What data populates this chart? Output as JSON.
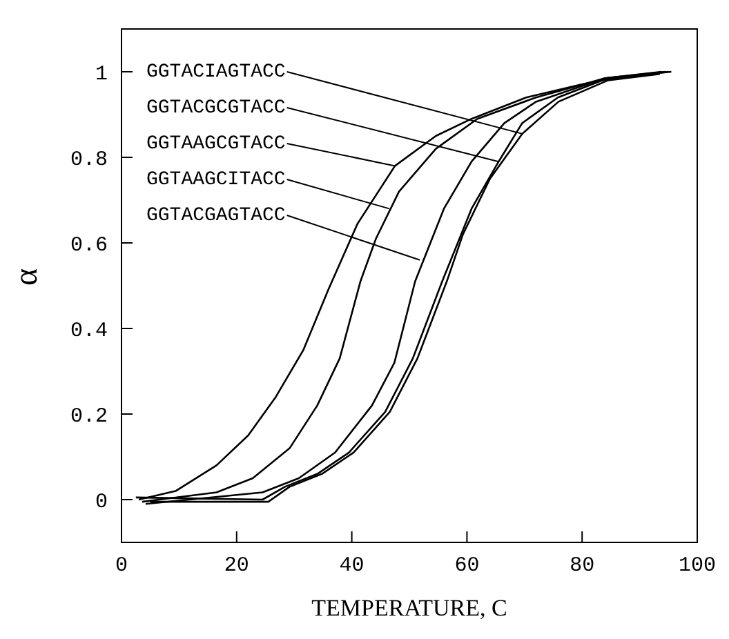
{
  "chart_data": {
    "type": "line",
    "xlabel": "TEMPERATURE, C",
    "ylabel": "α",
    "xlim": [
      0,
      100
    ],
    "ylim": [
      -0.1,
      1.1
    ],
    "xticks": [
      0,
      20,
      40,
      60,
      80,
      100
    ],
    "yticks": [
      0,
      0.2,
      0.4,
      0.6,
      0.8,
      1
    ],
    "marker": "none",
    "line_style": "solid",
    "series": [
      {
        "color": "#000000",
        "x": [
          3,
          9.4,
          16.5,
          22,
          26.8,
          31.6,
          35.9,
          41,
          47.5,
          54.6,
          60.8,
          70.3,
          79.8,
          85.4,
          95
        ],
        "values": [
          0,
          0.02,
          0.08,
          0.15,
          0.24,
          0.35,
          0.49,
          0.645,
          0.78,
          0.85,
          0.89,
          0.94,
          0.97,
          0.985,
          1
        ]
      },
      {
        "color": "#000000",
        "x": [
          3.6,
          16.5,
          22.8,
          29.2,
          34,
          37.9,
          41.5,
          44.2,
          48.2,
          54.6,
          61.8,
          72,
          84,
          94.4
        ],
        "values": [
          -0.005,
          0.017,
          0.05,
          0.12,
          0.22,
          0.33,
          0.51,
          0.61,
          0.72,
          0.82,
          0.89,
          0.94,
          0.985,
          1
        ]
      },
      {
        "color": "#000000",
        "x": [
          4.2,
          24.5,
          30.8,
          37.1,
          43.5,
          47.4,
          51,
          56,
          60.8,
          66.5,
          72,
          84,
          93.8
        ],
        "values": [
          -0.01,
          0.017,
          0.05,
          0.11,
          0.22,
          0.32,
          0.51,
          0.68,
          0.79,
          0.88,
          0.93,
          0.985,
          1
        ]
      },
      {
        "color": "#000000",
        "x": [
          2.5,
          24.5,
          28.4,
          34,
          39.5,
          45.8,
          50.6,
          55.7,
          60.8,
          65.5,
          69.6,
          75.8,
          84.5,
          95.5
        ],
        "values": [
          0.005,
          0,
          0.03,
          0.06,
          0.11,
          0.205,
          0.33,
          0.51,
          0.68,
          0.79,
          0.88,
          0.94,
          0.985,
          1
        ]
      },
      {
        "color": "#000000",
        "x": [
          5,
          25.5,
          29.2,
          34.8,
          40.3,
          46.6,
          51.4,
          56.5,
          59.3,
          64,
          69.6,
          75.9,
          84.5,
          93.5
        ],
        "values": [
          -0.005,
          -0.005,
          0.03,
          0.06,
          0.11,
          0.205,
          0.33,
          0.51,
          0.62,
          0.75,
          0.855,
          0.93,
          0.98,
          0.995
        ]
      }
    ],
    "annotations": [
      {
        "text": "GGTACIAGTACC",
        "x": 69.6,
        "y": 0.855
      },
      {
        "text": "GGTACGCGTACC",
        "x": 65.5,
        "y": 0.79
      },
      {
        "text": "GGTAAGCGTACC",
        "x": 47.5,
        "y": 0.78
      },
      {
        "text": "GGTAAGCITACC",
        "x": 46.5,
        "y": 0.68
      },
      {
        "text": "GGTACGAGTACC",
        "x": 51.8,
        "y": 0.56
      }
    ]
  }
}
